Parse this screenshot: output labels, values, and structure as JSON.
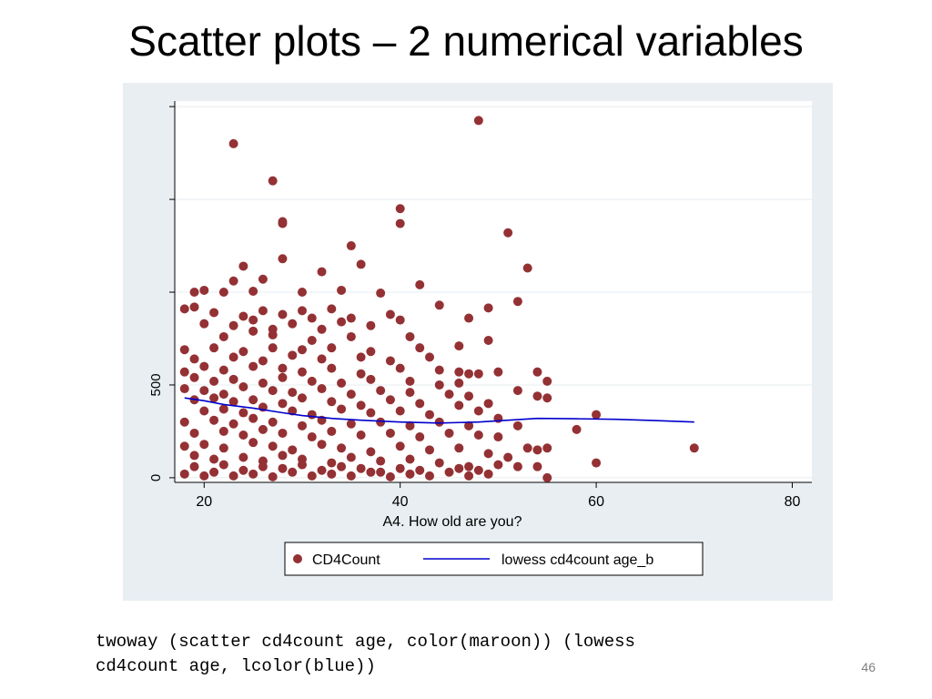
{
  "slide": {
    "title": "Scatter plots – 2 numerical variables",
    "code": "twoway (scatter cd4count age, color(maroon)) (lowess\ncd4count age, lcolor(blue))",
    "page_number": "46"
  },
  "colors": {
    "panel_bg": "#e8eef2",
    "plot_bg": "#ffffff",
    "grid": "#e6ecf0",
    "scatter": "#943134",
    "lowess": "#0000cc"
  },
  "chart_data": {
    "type": "scatter",
    "xlabel": "A4. How old are you?",
    "ylabel": "",
    "xlim": [
      17,
      82
    ],
    "ylim": [
      -25,
      2030
    ],
    "x_ticks": [
      20,
      40,
      60,
      80
    ],
    "y_ticks": [
      0,
      500,
      1000,
      1500,
      2000
    ],
    "y_tick_labels": [
      "0",
      "500",
      "",
      "",
      ""
    ],
    "grid": true,
    "legend": {
      "placement": "bottom",
      "entries": [
        "CD4Count",
        "lowess cd4count age_b"
      ]
    },
    "series": [
      {
        "name": "CD4Count",
        "kind": "scatter",
        "points": [
          [
            23,
            1800
          ],
          [
            48,
            1925
          ],
          [
            27,
            1600
          ],
          [
            28,
            1370
          ],
          [
            28,
            1380
          ],
          [
            40,
            1450
          ],
          [
            40,
            1370
          ],
          [
            51,
            1320
          ],
          [
            35,
            1250
          ],
          [
            28,
            1180
          ],
          [
            24,
            1140
          ],
          [
            36,
            1150
          ],
          [
            53,
            1130
          ],
          [
            42,
            1040
          ],
          [
            32,
            1110
          ],
          [
            26,
            1070
          ],
          [
            23,
            1060
          ],
          [
            19,
            1000
          ],
          [
            20,
            1010
          ],
          [
            22,
            1000
          ],
          [
            25,
            1005
          ],
          [
            30,
            1000
          ],
          [
            34,
            1010
          ],
          [
            38,
            995
          ],
          [
            52,
            950
          ],
          [
            18,
            910
          ],
          [
            19,
            920
          ],
          [
            33,
            910
          ],
          [
            44,
            930
          ],
          [
            49,
            915
          ],
          [
            21,
            890
          ],
          [
            24,
            870
          ],
          [
            26,
            900
          ],
          [
            28,
            880
          ],
          [
            30,
            900
          ],
          [
            31,
            860
          ],
          [
            35,
            860
          ],
          [
            39,
            880
          ],
          [
            47,
            860
          ],
          [
            20,
            830
          ],
          [
            23,
            820
          ],
          [
            25,
            850
          ],
          [
            27,
            800
          ],
          [
            29,
            830
          ],
          [
            32,
            800
          ],
          [
            34,
            840
          ],
          [
            37,
            820
          ],
          [
            40,
            850
          ],
          [
            22,
            760
          ],
          [
            25,
            790
          ],
          [
            27,
            770
          ],
          [
            31,
            740
          ],
          [
            35,
            760
          ],
          [
            41,
            760
          ],
          [
            49,
            740
          ],
          [
            18,
            690
          ],
          [
            21,
            700
          ],
          [
            24,
            680
          ],
          [
            27,
            700
          ],
          [
            30,
            690
          ],
          [
            33,
            700
          ],
          [
            37,
            680
          ],
          [
            42,
            700
          ],
          [
            46,
            710
          ],
          [
            19,
            640
          ],
          [
            23,
            650
          ],
          [
            26,
            630
          ],
          [
            29,
            660
          ],
          [
            32,
            640
          ],
          [
            36,
            650
          ],
          [
            39,
            630
          ],
          [
            43,
            650
          ],
          [
            18,
            570
          ],
          [
            20,
            600
          ],
          [
            22,
            580
          ],
          [
            25,
            600
          ],
          [
            28,
            590
          ],
          [
            30,
            570
          ],
          [
            33,
            590
          ],
          [
            36,
            560
          ],
          [
            40,
            590
          ],
          [
            44,
            580
          ],
          [
            47,
            560
          ],
          [
            50,
            570
          ],
          [
            48,
            560
          ],
          [
            46,
            570
          ],
          [
            54,
            570
          ],
          [
            55,
            520
          ],
          [
            19,
            540
          ],
          [
            21,
            520
          ],
          [
            23,
            530
          ],
          [
            26,
            510
          ],
          [
            28,
            540
          ],
          [
            31,
            520
          ],
          [
            34,
            510
          ],
          [
            37,
            530
          ],
          [
            41,
            520
          ],
          [
            44,
            500
          ],
          [
            46,
            510
          ],
          [
            52,
            470
          ],
          [
            18,
            480
          ],
          [
            20,
            470
          ],
          [
            22,
            450
          ],
          [
            24,
            490
          ],
          [
            27,
            470
          ],
          [
            29,
            460
          ],
          [
            32,
            480
          ],
          [
            35,
            450
          ],
          [
            38,
            470
          ],
          [
            41,
            460
          ],
          [
            45,
            450
          ],
          [
            47,
            440
          ],
          [
            49,
            400
          ],
          [
            54,
            440
          ],
          [
            55,
            430
          ],
          [
            19,
            420
          ],
          [
            21,
            430
          ],
          [
            23,
            410
          ],
          [
            25,
            420
          ],
          [
            28,
            400
          ],
          [
            30,
            430
          ],
          [
            33,
            410
          ],
          [
            36,
            390
          ],
          [
            39,
            420
          ],
          [
            42,
            400
          ],
          [
            46,
            390
          ],
          [
            20,
            360
          ],
          [
            22,
            370
          ],
          [
            24,
            350
          ],
          [
            26,
            380
          ],
          [
            29,
            360
          ],
          [
            31,
            340
          ],
          [
            34,
            370
          ],
          [
            37,
            350
          ],
          [
            40,
            360
          ],
          [
            43,
            340
          ],
          [
            48,
            360
          ],
          [
            50,
            320
          ],
          [
            18,
            300
          ],
          [
            21,
            310
          ],
          [
            23,
            290
          ],
          [
            25,
            320
          ],
          [
            27,
            300
          ],
          [
            30,
            280
          ],
          [
            32,
            310
          ],
          [
            35,
            290
          ],
          [
            38,
            300
          ],
          [
            41,
            280
          ],
          [
            44,
            300
          ],
          [
            47,
            280
          ],
          [
            52,
            280
          ],
          [
            58,
            260
          ],
          [
            60,
            340
          ],
          [
            19,
            240
          ],
          [
            22,
            250
          ],
          [
            24,
            230
          ],
          [
            26,
            260
          ],
          [
            28,
            240
          ],
          [
            31,
            220
          ],
          [
            33,
            250
          ],
          [
            36,
            230
          ],
          [
            39,
            240
          ],
          [
            42,
            220
          ],
          [
            45,
            240
          ],
          [
            48,
            230
          ],
          [
            50,
            220
          ],
          [
            53,
            160
          ],
          [
            54,
            150
          ],
          [
            55,
            160
          ],
          [
            18,
            170
          ],
          [
            20,
            180
          ],
          [
            22,
            160
          ],
          [
            25,
            190
          ],
          [
            27,
            170
          ],
          [
            29,
            150
          ],
          [
            32,
            180
          ],
          [
            34,
            160
          ],
          [
            37,
            140
          ],
          [
            40,
            170
          ],
          [
            43,
            150
          ],
          [
            46,
            160
          ],
          [
            49,
            130
          ],
          [
            51,
            110
          ],
          [
            19,
            120
          ],
          [
            21,
            100
          ],
          [
            24,
            110
          ],
          [
            26,
            90
          ],
          [
            28,
            120
          ],
          [
            30,
            100
          ],
          [
            33,
            80
          ],
          [
            35,
            110
          ],
          [
            38,
            90
          ],
          [
            41,
            100
          ],
          [
            44,
            80
          ],
          [
            47,
            60
          ],
          [
            50,
            70
          ],
          [
            52,
            60
          ],
          [
            54,
            60
          ],
          [
            60,
            80
          ],
          [
            70,
            160
          ],
          [
            18,
            20
          ],
          [
            20,
            10
          ],
          [
            21,
            30
          ],
          [
            23,
            10
          ],
          [
            25,
            20
          ],
          [
            27,
            5
          ],
          [
            29,
            30
          ],
          [
            31,
            10
          ],
          [
            33,
            20
          ],
          [
            35,
            10
          ],
          [
            37,
            30
          ],
          [
            39,
            5
          ],
          [
            41,
            20
          ],
          [
            43,
            10
          ],
          [
            45,
            30
          ],
          [
            47,
            10
          ],
          [
            49,
            20
          ],
          [
            55,
            0
          ],
          [
            19,
            60
          ],
          [
            22,
            70
          ],
          [
            24,
            40
          ],
          [
            26,
            60
          ],
          [
            28,
            50
          ],
          [
            30,
            70
          ],
          [
            32,
            40
          ],
          [
            34,
            60
          ],
          [
            36,
            50
          ],
          [
            38,
            30
          ],
          [
            40,
            50
          ],
          [
            42,
            40
          ],
          [
            46,
            50
          ],
          [
            48,
            40
          ]
        ]
      },
      {
        "name": "lowess cd4count age_b",
        "kind": "line",
        "points": [
          [
            18,
            430
          ],
          [
            20,
            415
          ],
          [
            22,
            395
          ],
          [
            25,
            375
          ],
          [
            28,
            350
          ],
          [
            30,
            335
          ],
          [
            33,
            320
          ],
          [
            36,
            310
          ],
          [
            40,
            300
          ],
          [
            44,
            295
          ],
          [
            48,
            300
          ],
          [
            51,
            310
          ],
          [
            54,
            320
          ],
          [
            58,
            318
          ],
          [
            62,
            315
          ],
          [
            66,
            308
          ],
          [
            70,
            300
          ]
        ]
      }
    ]
  }
}
